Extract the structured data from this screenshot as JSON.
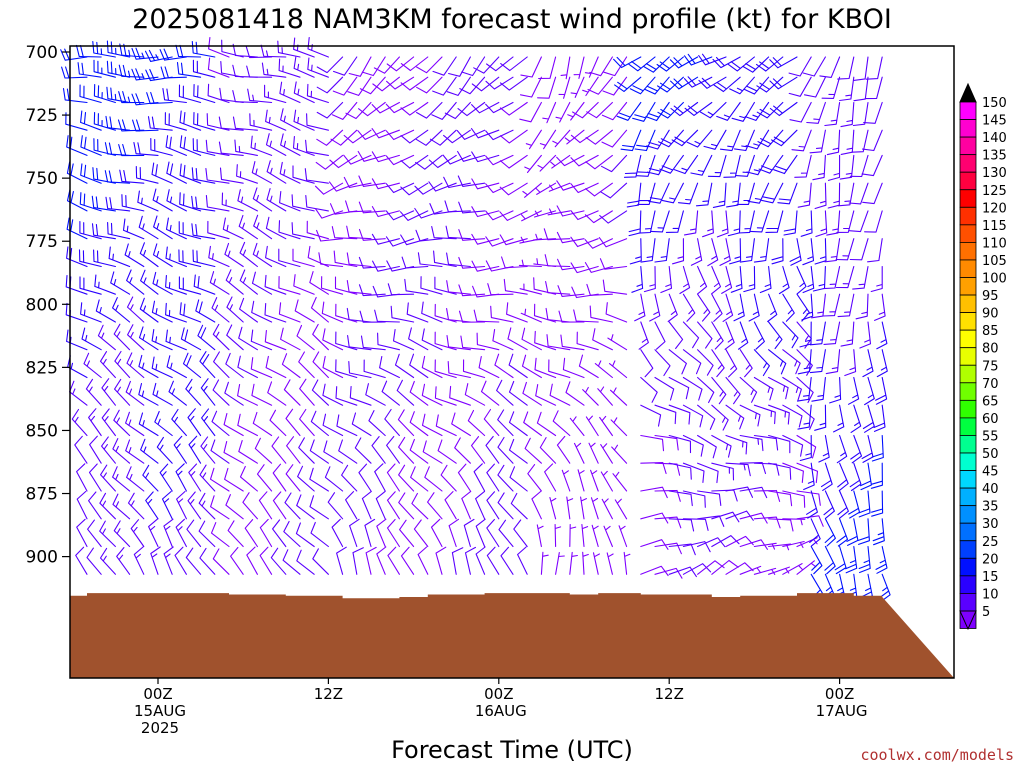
{
  "chart_data": {
    "type": "wind-barb-time-height",
    "title": "2025081418 NAM3KM forecast wind profile (kt) for KBOI",
    "xlabel": "Forecast Time (UTC)",
    "credit": "coolwx.com/models",
    "yaxis": {
      "inverted": true,
      "range": [
        700,
        925
      ],
      "ticks": [
        "700",
        "725",
        "750",
        "775",
        "800",
        "825",
        "850",
        "875",
        "900"
      ]
    },
    "xaxis": {
      "range": [
        -9,
        51
      ],
      "ticks": [
        {
          "hour": 0,
          "lines": [
            "00Z",
            "15AUG",
            "2025"
          ]
        },
        {
          "hour": 12,
          "lines": [
            "12Z"
          ]
        },
        {
          "hour": 24,
          "lines": [
            "00Z",
            "16AUG"
          ]
        },
        {
          "hour": 36,
          "lines": [
            "12Z"
          ]
        },
        {
          "hour": 48,
          "lines": [
            "00Z",
            "17AUG"
          ]
        }
      ]
    },
    "colorbar": {
      "labels": [
        "5",
        "10",
        "15",
        "20",
        "25",
        "30",
        "35",
        "40",
        "45",
        "50",
        "55",
        "60",
        "65",
        "70",
        "75",
        "80",
        "85",
        "90",
        "95",
        "100",
        "105",
        "110",
        "115",
        "120",
        "125",
        "130",
        "135",
        "140",
        "145",
        "150"
      ],
      "colors": [
        "#7f00ff",
        "#5a00ff",
        "#2a00ff",
        "#0010ff",
        "#0040ff",
        "#0070ff",
        "#0090ff",
        "#00b0ff",
        "#00d8ff",
        "#00ffd0",
        "#00ff90",
        "#00ff40",
        "#30ff00",
        "#70ff00",
        "#b0ff00",
        "#e8ff00",
        "#ffff00",
        "#ffe000",
        "#ffc000",
        "#ffa000",
        "#ff8a00",
        "#ff7000",
        "#ff5000",
        "#ff3000",
        "#ff0000",
        "#ff0040",
        "#ff0070",
        "#ff00a0",
        "#ff00d0",
        "#ff00ff"
      ]
    },
    "terrain_color": "#a0522d",
    "terrain_top_hpa": [
      {
        "hour": -9,
        "hpa": 916
      },
      {
        "hour": -8,
        "hpa": 915.5
      },
      {
        "hour": -5,
        "hpa": 914.5
      },
      {
        "hour": 1,
        "hpa": 914.5
      },
      {
        "hour": 5,
        "hpa": 915
      },
      {
        "hour": 9,
        "hpa": 915.5
      },
      {
        "hour": 13,
        "hpa": 916.5
      },
      {
        "hour": 17,
        "hpa": 916
      },
      {
        "hour": 19,
        "hpa": 915
      },
      {
        "hour": 23,
        "hpa": 914.5
      },
      {
        "hour": 29,
        "hpa": 915
      },
      {
        "hour": 31,
        "hpa": 914.5
      },
      {
        "hour": 34,
        "hpa": 915
      },
      {
        "hour": 39,
        "hpa": 916
      },
      {
        "hour": 41,
        "hpa": 915.5
      },
      {
        "hour": 45,
        "hpa": 914.5
      },
      {
        "hour": 48,
        "hpa": 914.5
      },
      {
        "hour": 49,
        "hpa": 915.5
      },
      {
        "hour": 51,
        "hpa": 916
      }
    ],
    "barb_levels_hpa": [
      702,
      710,
      720,
      731,
      741,
      752,
      763,
      774,
      785,
      796,
      807,
      818,
      829,
      840,
      852,
      863,
      874,
      885,
      896,
      907
    ],
    "barb_hours": [
      -8,
      -7,
      -6,
      -5,
      -4,
      -3,
      -2,
      -1,
      0,
      1,
      2,
      3,
      4,
      5,
      6,
      7,
      8,
      9,
      10,
      11,
      12,
      13,
      14,
      15,
      16,
      17,
      18,
      19,
      20,
      21,
      22,
      23,
      24,
      25,
      26,
      27,
      28,
      29,
      30,
      31,
      32,
      33,
      34,
      35,
      36,
      37,
      38,
      39,
      40,
      41,
      42,
      43,
      44,
      45,
      46,
      47,
      48,
      49,
      50,
      51
    ],
    "wind_regimes": [
      {
        "from_hour": -8,
        "to_hour": 5,
        "upper_dir_deg": 270,
        "upper_kt": 22,
        "lower_dir_deg": 330,
        "lower_kt": 12
      },
      {
        "from_hour": 5,
        "to_hour": 13,
        "upper_dir_deg": 280,
        "upper_kt": 12,
        "lower_dir_deg": 320,
        "lower_kt": 10
      },
      {
        "from_hour": 13,
        "to_hour": 27,
        "upper_dir_deg": 220,
        "upper_kt": 10,
        "lower_dir_deg": 340,
        "lower_kt": 10
      },
      {
        "from_hour": 27,
        "to_hour": 34,
        "upper_dir_deg": 200,
        "upper_kt": 9,
        "lower_dir_deg": 0,
        "lower_kt": 6
      },
      {
        "from_hour": 34,
        "to_hour": 46,
        "upper_dir_deg": 240,
        "upper_kt": 20,
        "lower_dir_deg": 60,
        "lower_kt": 8
      },
      {
        "from_hour": 46,
        "to_hour": 51,
        "upper_dir_deg": 200,
        "upper_kt": 10,
        "lower_dir_deg": 160,
        "lower_kt": 22
      }
    ]
  }
}
